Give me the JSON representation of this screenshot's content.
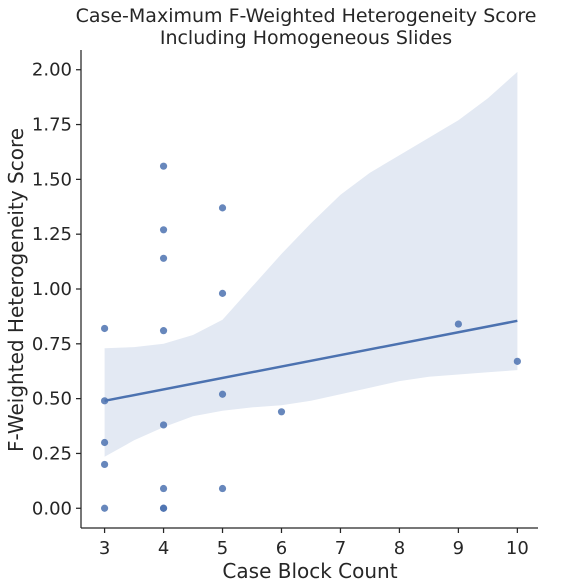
{
  "chart_data": {
    "type": "scatter",
    "title_lines": [
      "Case-Maximum F-Weighted Heterogeneity Score",
      "Including Homogeneous Slides"
    ],
    "xlabel": "Case Block Count",
    "ylabel": "F-Weighted Heterogeneity Score",
    "xlim": [
      2.6,
      10.35
    ],
    "ylim": [
      -0.09,
      2.09
    ],
    "x_ticks": [
      3,
      4,
      5,
      6,
      7,
      8,
      9,
      10
    ],
    "y_ticks": [
      0.0,
      0.25,
      0.5,
      0.75,
      1.0,
      1.25,
      1.5,
      1.75,
      2.0
    ],
    "y_tick_labels": [
      "0.00",
      "0.25",
      "0.50",
      "0.75",
      "1.00",
      "1.25",
      "1.50",
      "1.75",
      "2.00"
    ],
    "grid": false,
    "points": [
      {
        "x": 3,
        "y": 0.82
      },
      {
        "x": 3,
        "y": 0.49
      },
      {
        "x": 3,
        "y": 0.3
      },
      {
        "x": 3,
        "y": 0.2
      },
      {
        "x": 3,
        "y": 0.0
      },
      {
        "x": 4,
        "y": 1.56
      },
      {
        "x": 4,
        "y": 1.27
      },
      {
        "x": 4,
        "y": 1.14
      },
      {
        "x": 4,
        "y": 0.81
      },
      {
        "x": 4,
        "y": 0.38
      },
      {
        "x": 4,
        "y": 0.09
      },
      {
        "x": 4,
        "y": 0.0
      },
      {
        "x": 4,
        "y": 0.0
      },
      {
        "x": 5,
        "y": 1.37
      },
      {
        "x": 5,
        "y": 0.98
      },
      {
        "x": 5,
        "y": 0.52
      },
      {
        "x": 5,
        "y": 0.09
      },
      {
        "x": 6,
        "y": 0.44
      },
      {
        "x": 9,
        "y": 0.84
      },
      {
        "x": 10,
        "y": 0.67
      }
    ],
    "regression_line": {
      "x": [
        3,
        10
      ],
      "y": [
        0.49,
        0.855
      ]
    },
    "confidence_band": {
      "x": [
        3,
        3.5,
        4,
        4.5,
        5,
        5.5,
        6,
        6.5,
        7,
        7.5,
        8,
        8.5,
        9,
        9.5,
        10
      ],
      "upper": [
        0.73,
        0.735,
        0.75,
        0.79,
        0.86,
        1.01,
        1.16,
        1.3,
        1.43,
        1.53,
        1.61,
        1.69,
        1.77,
        1.87,
        1.99
      ],
      "lower": [
        0.235,
        0.31,
        0.37,
        0.42,
        0.445,
        0.46,
        0.47,
        0.49,
        0.52,
        0.55,
        0.58,
        0.6,
        0.61,
        0.62,
        0.63
      ]
    },
    "colors": {
      "points": "#4c72b0",
      "line": "#4c72b0",
      "band": "#e3e9f3",
      "axis": "#262626"
    }
  }
}
